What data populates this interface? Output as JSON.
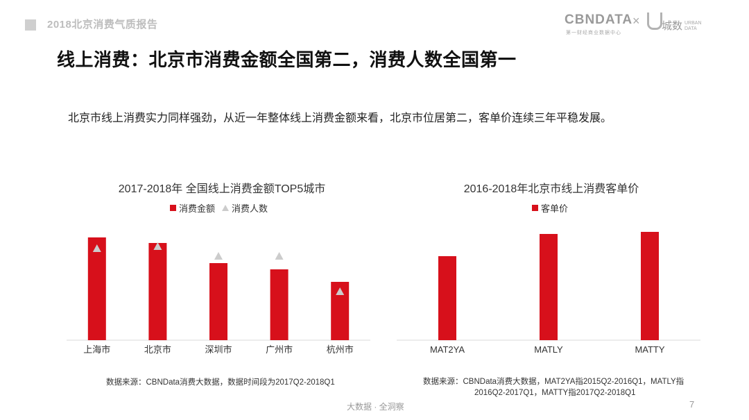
{
  "header": {
    "title": "2018北京消费气质报告"
  },
  "logo": {
    "cbn_text": "CBNDATA",
    "cbn_sub": "第一财经商业数据中心",
    "cross": "×",
    "cs_text": "城数",
    "urban_line1": "URBAN",
    "urban_line2": "DATA"
  },
  "page_title": "线上消费：北京市消费金额全国第二，消费人数全国第一",
  "subtitle": "北京市线上消费实力同样强劲，从近一年整体线上消费金额来看，北京市位居第二，客单价连续三年平稳发展。",
  "chart_data": [
    {
      "type": "bar",
      "title": "2017-2018年 全国线上消费金额TOP5城市",
      "categories": [
        "上海市",
        "北京市",
        "深圳市",
        "广州市",
        "杭州市"
      ],
      "series": [
        {
          "name": "消费金额",
          "values": [
            148,
            140,
            111,
            102,
            84
          ],
          "color": "#d7101b",
          "marker": "bar"
        },
        {
          "name": "消费人数",
          "values": [
            132,
            135,
            121,
            121,
            70
          ],
          "color": "#cccccc",
          "marker": "triangle"
        }
      ],
      "ylim": [
        0,
        160
      ],
      "xlabel": "",
      "ylabel": "",
      "source": "数据来源：CBNData消费大数据，数据时间段为2017Q2-2018Q1"
    },
    {
      "type": "bar",
      "title": "2016-2018年北京市线上消费客单价",
      "categories": [
        "MAT2YA",
        "MATLY",
        "MATTY"
      ],
      "series": [
        {
          "name": "客单价",
          "values": [
            121,
            153,
            156
          ],
          "color": "#d7101b",
          "marker": "bar"
        }
      ],
      "ylim": [
        0,
        160
      ],
      "xlabel": "",
      "ylabel": "",
      "source_lines": [
        "数据来源：CBNData消费大数据，MAT2YA指2015Q2-2016Q1，MATLY指",
        "2016Q2-2017Q1，MATTY指2017Q2-2018Q1"
      ]
    }
  ],
  "footer": {
    "text": "大数据 · 全洞察",
    "page_number": "7"
  }
}
